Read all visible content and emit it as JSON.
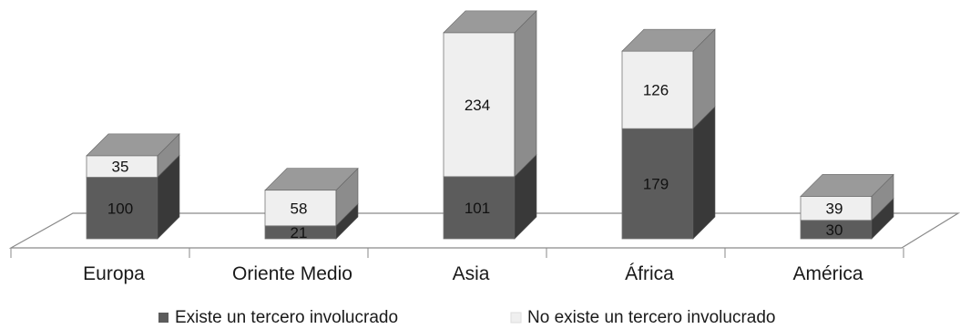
{
  "chart_data": {
    "type": "bar",
    "stacked": true,
    "three_d": true,
    "categories": [
      "Europa",
      "Oriente Medio",
      "Asia",
      "África",
      "América"
    ],
    "series": [
      {
        "name": "Existe un tercero involucrado",
        "values": [
          100,
          21,
          101,
          179,
          30
        ],
        "color": "#5c5c5c"
      },
      {
        "name": "No existe un tercero involucrado",
        "values": [
          35,
          58,
          234,
          126,
          39
        ],
        "color": "#efefef"
      }
    ],
    "legend_position": "bottom",
    "grid": false
  }
}
